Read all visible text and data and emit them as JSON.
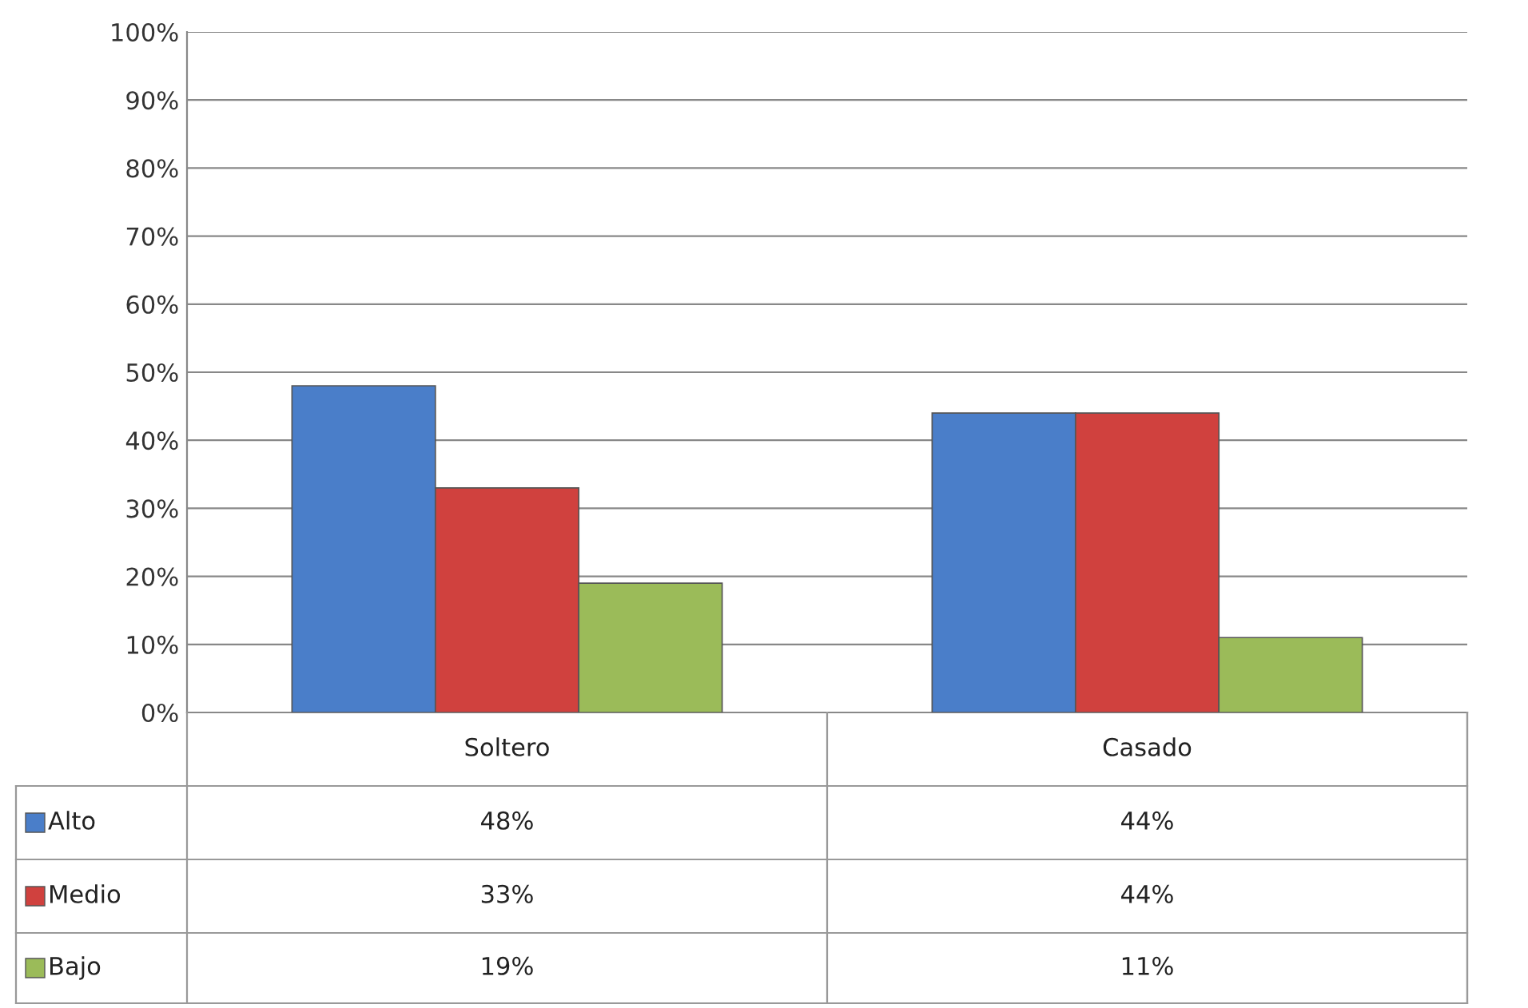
{
  "chart_data": {
    "type": "bar",
    "categories": [
      "Soltero",
      "Casado"
    ],
    "series": [
      {
        "name": "Alto",
        "color": "#4a7ec9",
        "values": [
          48,
          44
        ],
        "value_labels": [
          "48%",
          "44%"
        ]
      },
      {
        "name": "Medio",
        "color": "#d0413e",
        "values": [
          33,
          44
        ],
        "value_labels": [
          "33%",
          "44%"
        ]
      },
      {
        "name": "Bajo",
        "color": "#9bbb59",
        "values": [
          19,
          11
        ],
        "value_labels": [
          "19%",
          "11%"
        ]
      }
    ],
    "ylim": [
      0,
      100
    ],
    "yticks": [
      {
        "value": 0,
        "label": "0%"
      },
      {
        "value": 10,
        "label": "10%"
      },
      {
        "value": 20,
        "label": "20%"
      },
      {
        "value": 30,
        "label": "30%"
      },
      {
        "value": 40,
        "label": "40%"
      },
      {
        "value": 50,
        "label": "50%"
      },
      {
        "value": 60,
        "label": "60%"
      },
      {
        "value": 70,
        "label": "70%"
      },
      {
        "value": 80,
        "label": "80%"
      },
      {
        "value": 90,
        "label": "90%"
      },
      {
        "value": 100,
        "label": "100%"
      }
    ],
    "grid": "y",
    "legend": "bottom left"
  }
}
